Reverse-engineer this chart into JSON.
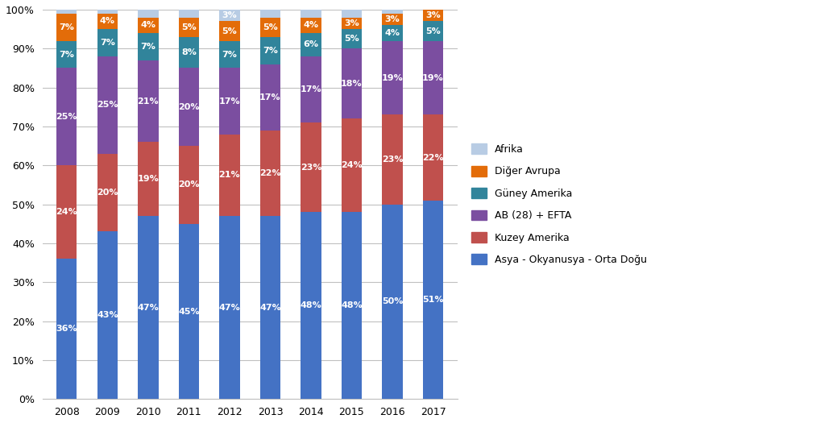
{
  "years": [
    "2008",
    "2009",
    "2010",
    "2011",
    "2012",
    "2013",
    "2014",
    "2015",
    "2016",
    "2017"
  ],
  "series": {
    "Asya - Okyanusya - Orta Doğu": [
      36,
      43,
      47,
      45,
      47,
      47,
      48,
      48,
      50,
      51
    ],
    "Kuzey Amerika": [
      24,
      20,
      19,
      20,
      21,
      22,
      23,
      24,
      23,
      22
    ],
    "AB (28) + EFTA": [
      25,
      25,
      21,
      20,
      17,
      17,
      17,
      18,
      19,
      19
    ],
    "Güney Amerika": [
      7,
      7,
      7,
      8,
      7,
      7,
      6,
      5,
      4,
      5
    ],
    "Diğer Avrupa": [
      7,
      4,
      4,
      5,
      5,
      5,
      4,
      3,
      3,
      3
    ],
    "Afrika": [
      1,
      1,
      2,
      2,
      3,
      2,
      2,
      2,
      1,
      0
    ]
  },
  "colors": {
    "Asya - Okyanusya - Orta Doğu": "#4472C4",
    "Kuzey Amerika": "#C0504D",
    "AB (28) + EFTA": "#7B4EA0",
    "Güney Amerika": "#31849B",
    "Diğer Avrupa": "#E36C09",
    "Afrika": "#B8CCE4"
  },
  "legend_order": [
    "Afrika",
    "Diğer Avrupa",
    "Güney Amerika",
    "AB (28) + EFTA",
    "Kuzey Amerika",
    "Asya - Okyanusya - Orta Doğu"
  ],
  "bar_width": 0.5,
  "ylim": [
    0,
    100
  ],
  "yticks": [
    0,
    10,
    20,
    30,
    40,
    50,
    60,
    70,
    80,
    90,
    100
  ],
  "yticklabels": [
    "0%",
    "10%",
    "20%",
    "30%",
    "40%",
    "50%",
    "60%",
    "70%",
    "80%",
    "90%",
    "100%"
  ],
  "background_color": "#FFFFFF",
  "grid_color": "#C0C0C0",
  "text_color": "#FFFFFF",
  "font_size_bar": 8,
  "font_size_axis": 9,
  "font_size_legend": 9,
  "figsize": [
    10.24,
    5.25
  ],
  "dpi": 100
}
